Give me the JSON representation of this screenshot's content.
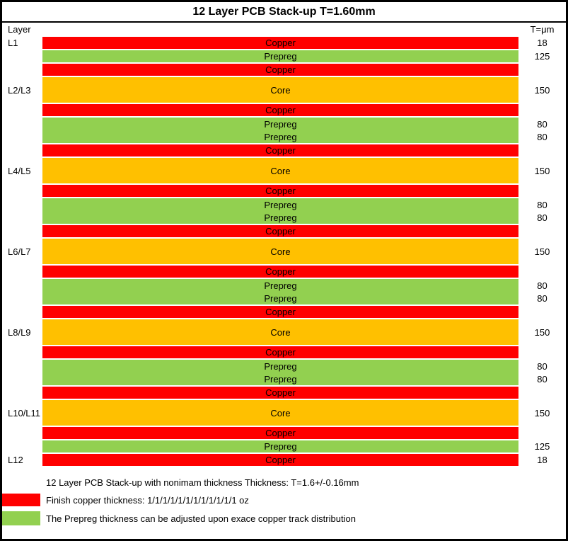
{
  "title": "12 Layer PCB Stack-up T=1.60mm",
  "header": {
    "layer_col": "Layer",
    "thickness_col": "T=μm"
  },
  "colors": {
    "copper": "#FF0000",
    "prepreg": "#92D050",
    "core": "#FFC000"
  },
  "stack": {
    "blocks": [
      {
        "layer": "L1",
        "material": "copper",
        "labels": [
          "Copper"
        ],
        "values": [
          "18"
        ],
        "size": 1
      },
      {
        "layer": "",
        "material": "prepreg",
        "labels": [
          "Prepreg"
        ],
        "values": [
          "125"
        ],
        "size": 1
      },
      {
        "layer": "",
        "material": "copper",
        "labels": [
          "Copper"
        ],
        "values": [],
        "size": 1
      },
      {
        "layer": "L2/L3",
        "material": "core",
        "labels": [
          "Core"
        ],
        "values": [
          "150"
        ],
        "size": 2
      },
      {
        "layer": "",
        "material": "copper",
        "labels": [
          "Copper"
        ],
        "values": [],
        "size": 1
      },
      {
        "layer": "",
        "material": "prepreg",
        "labels": [
          "Prepreg",
          "Prepreg"
        ],
        "values": [
          "80",
          "80"
        ],
        "size": 2
      },
      {
        "layer": "",
        "material": "copper",
        "labels": [
          "Copper"
        ],
        "values": [],
        "size": 1
      },
      {
        "layer": "L4/L5",
        "material": "core",
        "labels": [
          "Core"
        ],
        "values": [
          "150"
        ],
        "size": 2
      },
      {
        "layer": "",
        "material": "copper",
        "labels": [
          "Copper"
        ],
        "values": [],
        "size": 1
      },
      {
        "layer": "",
        "material": "prepreg",
        "labels": [
          "Prepreg",
          "Prepreg"
        ],
        "values": [
          "80",
          "80"
        ],
        "size": 2
      },
      {
        "layer": "",
        "material": "copper",
        "labels": [
          "Copper"
        ],
        "values": [],
        "size": 1
      },
      {
        "layer": "L6/L7",
        "material": "core",
        "labels": [
          "Core"
        ],
        "values": [
          "150"
        ],
        "size": 2
      },
      {
        "layer": "",
        "material": "copper",
        "labels": [
          "Copper"
        ],
        "values": [],
        "size": 1
      },
      {
        "layer": "",
        "material": "prepreg",
        "labels": [
          "Prepreg",
          "Prepreg"
        ],
        "values": [
          "80",
          "80"
        ],
        "size": 2
      },
      {
        "layer": "",
        "material": "copper",
        "labels": [
          "Copper"
        ],
        "values": [],
        "size": 1
      },
      {
        "layer": "L8/L9",
        "material": "core",
        "labels": [
          "Core"
        ],
        "values": [
          "150"
        ],
        "size": 2
      },
      {
        "layer": "",
        "material": "copper",
        "labels": [
          "Copper"
        ],
        "values": [],
        "size": 1
      },
      {
        "layer": "",
        "material": "prepreg",
        "labels": [
          "Prepreg",
          "Prepreg"
        ],
        "values": [
          "80",
          "80"
        ],
        "size": 2
      },
      {
        "layer": "",
        "material": "copper",
        "labels": [
          "Copper"
        ],
        "values": [],
        "size": 1
      },
      {
        "layer": "L10/L11",
        "material": "core",
        "labels": [
          "Core"
        ],
        "values": [
          "150"
        ],
        "size": 2
      },
      {
        "layer": "",
        "material": "copper",
        "labels": [
          "Copper"
        ],
        "values": [],
        "size": 1
      },
      {
        "layer": "",
        "material": "prepreg",
        "labels": [
          "Prepreg"
        ],
        "values": [
          "125"
        ],
        "size": 1
      },
      {
        "layer": "L12",
        "material": "copper",
        "labels": [
          "Copper"
        ],
        "values": [
          "18"
        ],
        "size": 1
      }
    ]
  },
  "legend": {
    "note": "12 Layer PCB Stack-up with nonimam thickness Thickness: T=1.6+/-0.16mm",
    "items": [
      {
        "swatch": "copper",
        "text": "Finish copper thickness: 1/1/1/1/1/1/1/1/1/1/1/1 oz"
      },
      {
        "swatch": "prepreg",
        "text": "The Prepreg thickness can be adjusted upon exace copper track distribution"
      }
    ]
  }
}
